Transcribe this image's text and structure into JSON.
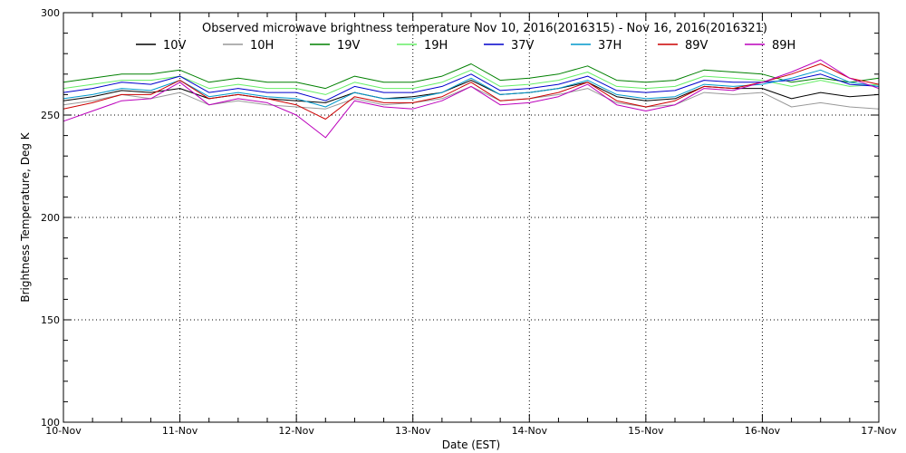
{
  "chart_data": {
    "type": "line",
    "title": "Observed microwave brightness temperature Nov 10, 2016(2016315) - Nov 16, 2016(2016321)",
    "xlabel": "Date (EST)",
    "ylabel": "Brightness Temperature, Deg K",
    "ylim": [
      100,
      300
    ],
    "xlim": [
      0,
      7
    ],
    "y_ticks": [
      100,
      150,
      200,
      250,
      300
    ],
    "x_ticks": [
      {
        "value": 0,
        "label": "10-Nov"
      },
      {
        "value": 1,
        "label": "11-Nov"
      },
      {
        "value": 2,
        "label": "12-Nov"
      },
      {
        "value": 3,
        "label": "13-Nov"
      },
      {
        "value": 4,
        "label": "14-Nov"
      },
      {
        "value": 5,
        "label": "15-Nov"
      },
      {
        "value": 6,
        "label": "16-Nov"
      },
      {
        "value": 7,
        "label": "17-Nov"
      }
    ],
    "grid": true,
    "legend_position": "top",
    "x": [
      0,
      0.25,
      0.5,
      0.75,
      1.0,
      1.25,
      1.5,
      1.75,
      2.0,
      2.25,
      2.5,
      2.75,
      3.0,
      3.25,
      3.5,
      3.75,
      4.0,
      4.25,
      4.5,
      4.75,
      5.0,
      5.25,
      5.5,
      5.75,
      6.0,
      6.25,
      6.5,
      6.75,
      7.0
    ],
    "series": [
      {
        "name": "10V",
        "color": "#000000",
        "values": [
          257,
          259,
          262,
          261,
          263,
          258,
          260,
          258,
          257,
          256,
          261,
          258,
          259,
          261,
          267,
          260,
          261,
          263,
          266,
          259,
          257,
          258,
          264,
          263,
          263,
          258,
          261,
          259,
          260
        ]
      },
      {
        "name": "10H",
        "color": "#999999",
        "values": [
          255,
          257,
          260,
          258,
          261,
          255,
          257,
          255,
          254,
          253,
          258,
          255,
          256,
          258,
          264,
          257,
          258,
          260,
          263,
          256,
          254,
          255,
          261,
          260,
          261,
          254,
          256,
          254,
          253
        ]
      },
      {
        "name": "19V",
        "color": "#008000",
        "values": [
          266,
          268,
          270,
          270,
          272,
          266,
          268,
          266,
          266,
          263,
          269,
          266,
          266,
          269,
          275,
          267,
          268,
          270,
          274,
          267,
          266,
          267,
          272,
          271,
          270,
          266,
          268,
          266,
          268
        ]
      },
      {
        "name": "19H",
        "color": "#66ee66",
        "values": [
          263,
          265,
          267,
          267,
          269,
          263,
          265,
          263,
          263,
          260,
          266,
          263,
          263,
          266,
          272,
          264,
          265,
          267,
          271,
          264,
          263,
          264,
          269,
          268,
          267,
          264,
          267,
          264,
          265
        ]
      },
      {
        "name": "37V",
        "color": "#0000cc",
        "values": [
          261,
          263,
          266,
          265,
          269,
          261,
          263,
          261,
          261,
          257,
          264,
          261,
          261,
          264,
          270,
          262,
          263,
          265,
          269,
          262,
          261,
          262,
          267,
          266,
          266,
          267,
          270,
          265,
          264
        ]
      },
      {
        "name": "37H",
        "color": "#0099cc",
        "values": [
          258,
          260,
          263,
          262,
          267,
          259,
          261,
          259,
          258,
          254,
          261,
          258,
          258,
          261,
          268,
          260,
          261,
          263,
          267,
          260,
          258,
          259,
          265,
          264,
          265,
          268,
          272,
          266,
          264
        ]
      },
      {
        "name": "89V",
        "color": "#cc0000",
        "values": [
          253,
          256,
          260,
          260,
          267,
          258,
          260,
          258,
          255,
          248,
          259,
          256,
          256,
          259,
          266,
          257,
          258,
          261,
          266,
          257,
          254,
          257,
          264,
          263,
          266,
          270,
          275,
          268,
          265
        ]
      },
      {
        "name": "89H",
        "color": "#bb00bb",
        "values": [
          247,
          252,
          257,
          258,
          266,
          255,
          258,
          256,
          250,
          239,
          257,
          254,
          253,
          257,
          264,
          255,
          256,
          259,
          265,
          255,
          252,
          255,
          263,
          262,
          266,
          271,
          277,
          268,
          263
        ]
      }
    ]
  }
}
